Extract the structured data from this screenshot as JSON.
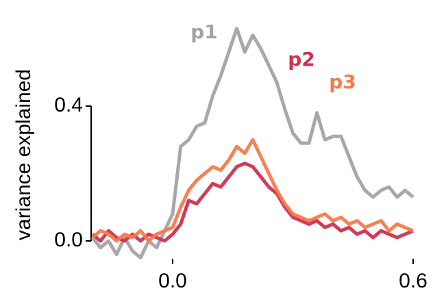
{
  "chart_data": {
    "type": "line",
    "y_label": "variance explained",
    "x": [
      -0.2,
      -0.18,
      -0.16,
      -0.14,
      -0.12,
      -0.1,
      -0.08,
      -0.06,
      -0.04,
      -0.02,
      0.0,
      0.02,
      0.04,
      0.06,
      0.08,
      0.1,
      0.12,
      0.14,
      0.16,
      0.18,
      0.2,
      0.22,
      0.24,
      0.26,
      0.28,
      0.3,
      0.32,
      0.34,
      0.36,
      0.38,
      0.4,
      0.42,
      0.44,
      0.46,
      0.48,
      0.5,
      0.52,
      0.54,
      0.56,
      0.58,
      0.6
    ],
    "series": [
      {
        "name": "p1",
        "color": "#a3a3a3",
        "values": [
          0.01,
          -0.02,
          0.0,
          -0.04,
          0.01,
          -0.03,
          -0.05,
          0.0,
          -0.02,
          0.03,
          0.08,
          0.28,
          0.3,
          0.34,
          0.35,
          0.43,
          0.49,
          0.56,
          0.63,
          0.56,
          0.61,
          0.57,
          0.52,
          0.47,
          0.39,
          0.32,
          0.29,
          0.29,
          0.38,
          0.3,
          0.31,
          0.31,
          0.25,
          0.19,
          0.15,
          0.13,
          0.15,
          0.16,
          0.13,
          0.15,
          0.13
        ]
      },
      {
        "name": "p2",
        "color": "#d0304f",
        "values": [
          0.02,
          0.0,
          0.03,
          0.01,
          0.0,
          0.02,
          0.0,
          0.02,
          0.01,
          0.0,
          0.02,
          0.05,
          0.12,
          0.11,
          0.14,
          0.17,
          0.16,
          0.19,
          0.22,
          0.23,
          0.22,
          0.19,
          0.16,
          0.14,
          0.1,
          0.07,
          0.06,
          0.05,
          0.06,
          0.04,
          0.05,
          0.03,
          0.04,
          0.02,
          0.03,
          0.01,
          0.03,
          0.02,
          0.01,
          0.02,
          0.03
        ]
      },
      {
        "name": "p3",
        "color": "#f57a4a",
        "values": [
          0.01,
          0.03,
          0.02,
          0.0,
          0.02,
          0.01,
          0.03,
          0.0,
          0.02,
          0.03,
          0.04,
          0.1,
          0.15,
          0.18,
          0.2,
          0.22,
          0.21,
          0.24,
          0.28,
          0.26,
          0.3,
          0.25,
          0.2,
          0.15,
          0.11,
          0.08,
          0.07,
          0.06,
          0.07,
          0.08,
          0.06,
          0.07,
          0.05,
          0.06,
          0.04,
          0.05,
          0.06,
          0.03,
          0.05,
          0.04,
          0.03
        ]
      }
    ],
    "xlim": [
      -0.2,
      0.6
    ],
    "xticks": [
      {
        "value": 0,
        "label": "0.0"
      },
      0.6
    ],
    "ylim": [
      -0.07,
      0.68
    ],
    "yticks": [
      {
        "value": 0,
        "label": "0.0"
      },
      0.4
    ]
  }
}
